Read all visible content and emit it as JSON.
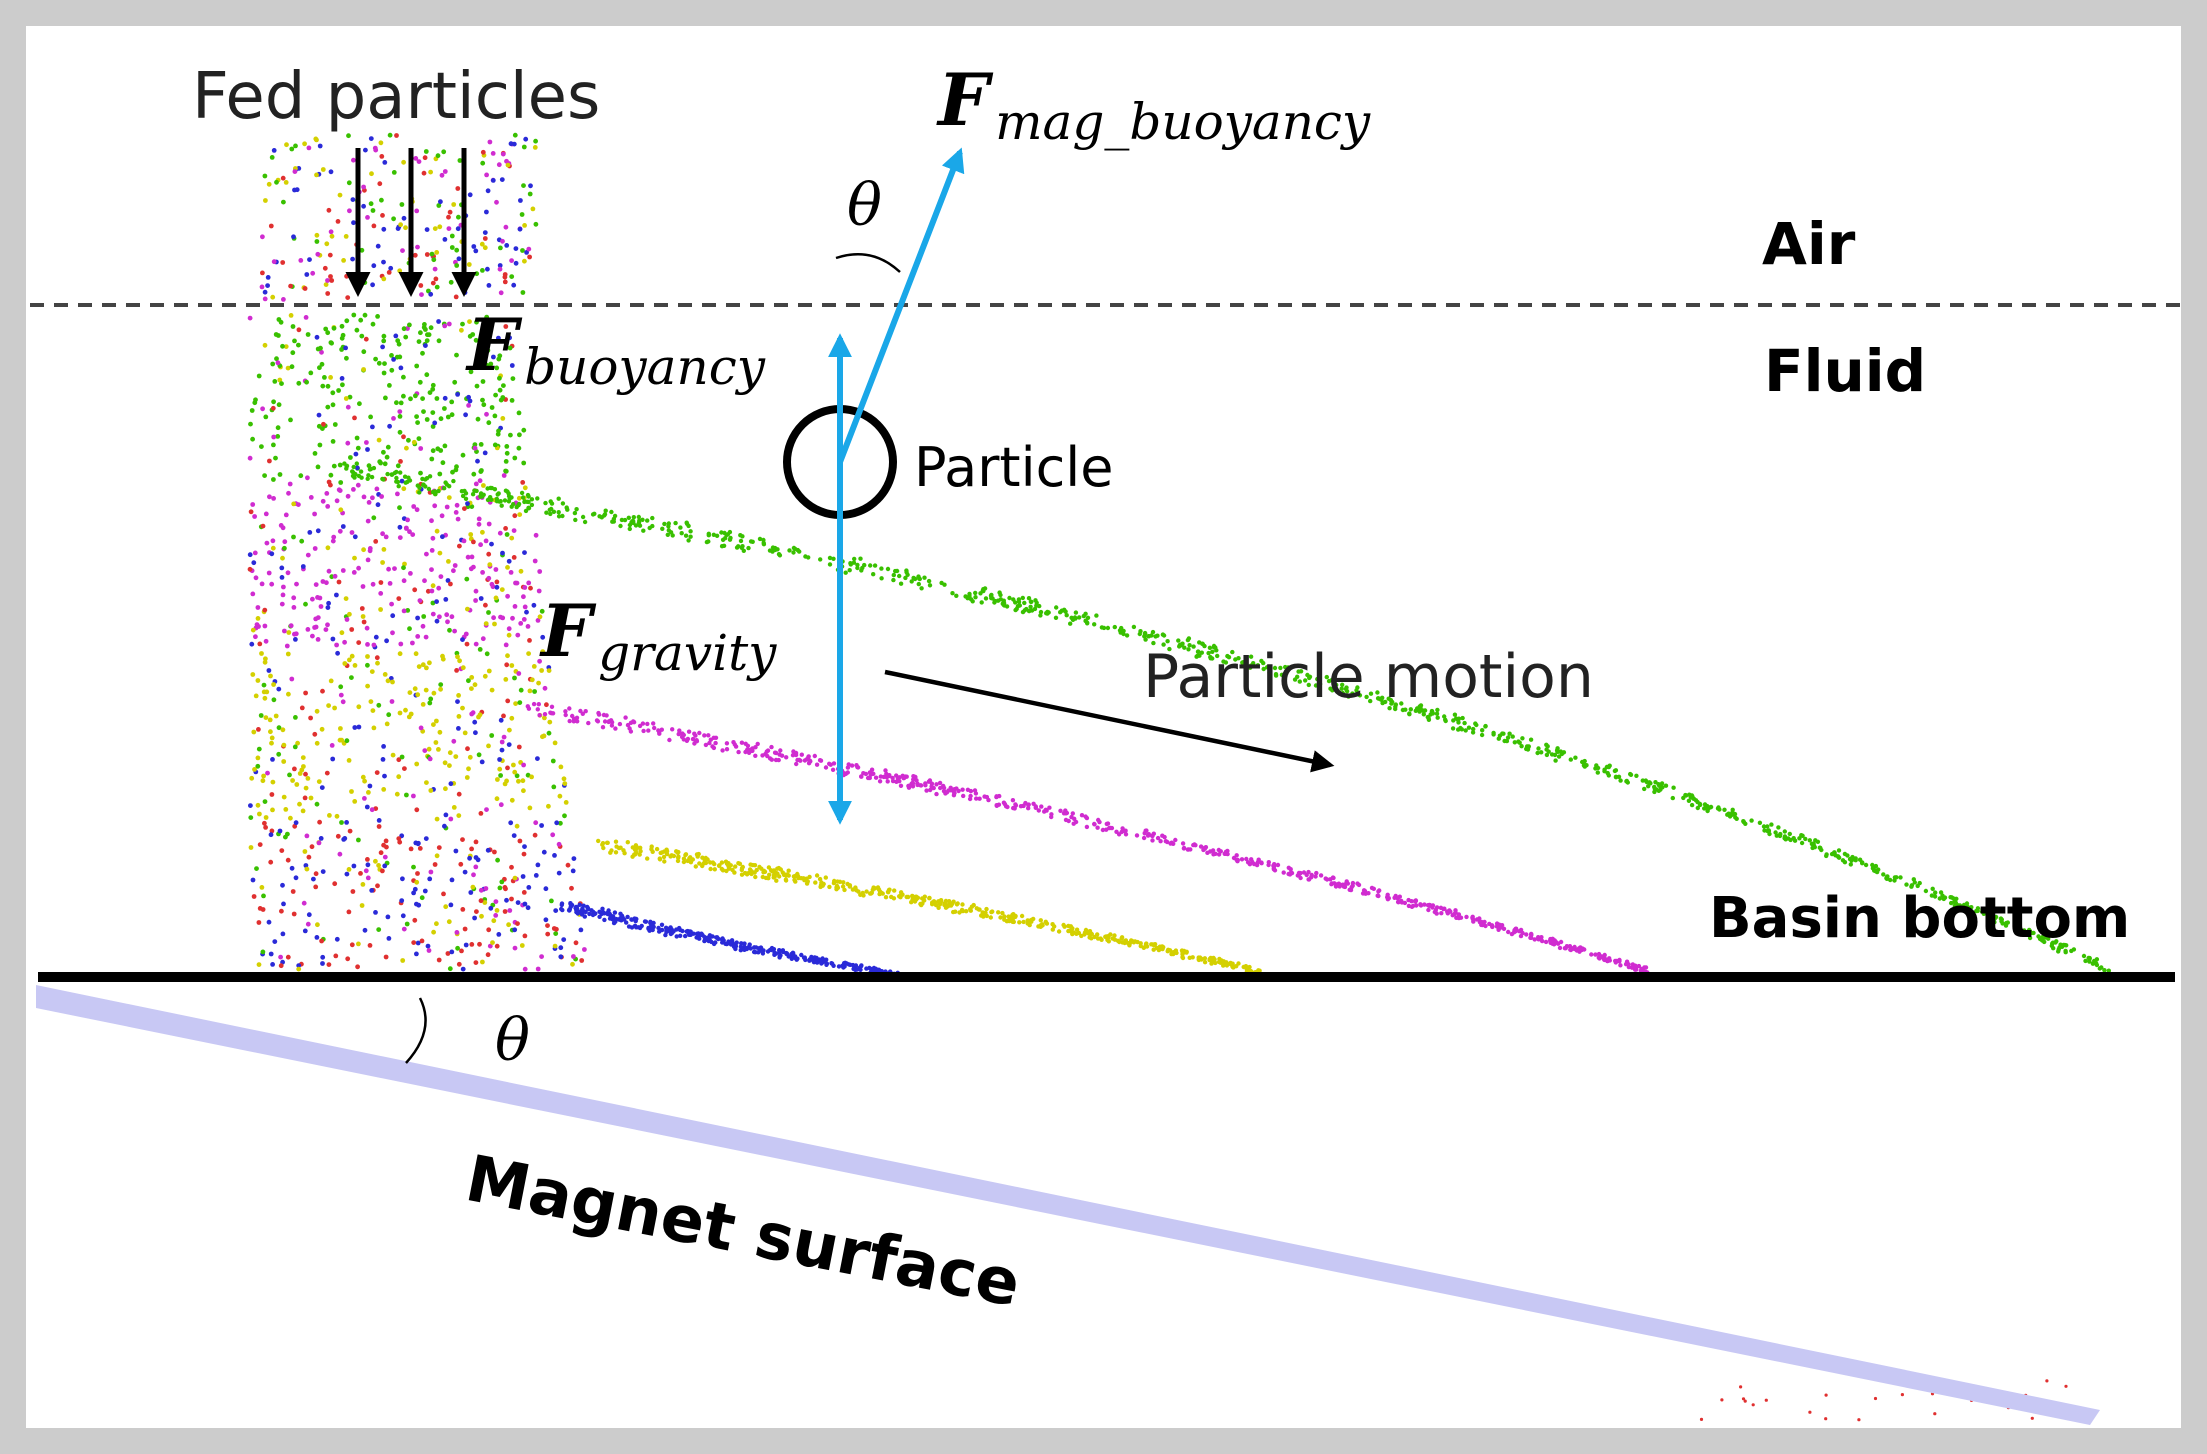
{
  "labels": {
    "fed_particles": "Fed particles",
    "air": "Air",
    "fluid": "Fluid",
    "particle": "Particle",
    "particle_motion": "Particle motion",
    "basin_bottom": "Basin bottom",
    "magnet_surface": "Magnet surface",
    "theta_top": "θ",
    "theta_bottom": "θ"
  },
  "forces": {
    "mag_buoyancy": {
      "symbol": "F",
      "subscript": "mag_buoyancy"
    },
    "buoyancy": {
      "symbol": "F",
      "subscript": "buoyancy"
    },
    "gravity": {
      "symbol": "F",
      "subscript": "gravity"
    }
  },
  "colors": {
    "force_arrow": "#1aa7e8",
    "magnet_surface": "#c8c8f4",
    "frame": "#cccccc",
    "stream_green": "#39c000",
    "stream_magenta": "#d02cd0",
    "stream_yellow": "#d4d000",
    "stream_blue": "#2a2ad8",
    "stream_red": "#e03030"
  }
}
